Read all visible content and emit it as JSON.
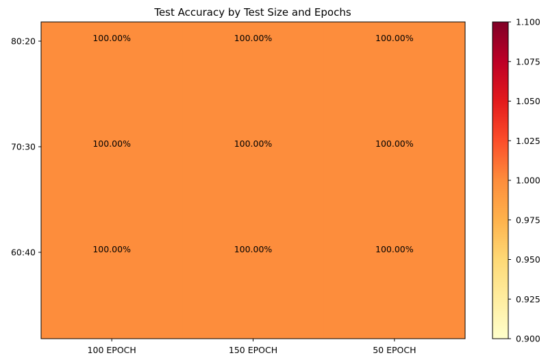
{
  "chart_data": {
    "type": "heatmap",
    "title": "Test Accuracy by Test Size and Epochs",
    "xlabel": "",
    "ylabel": "",
    "x_categories": [
      "100 EPOCH",
      "150 EPOCH",
      "50 EPOCH"
    ],
    "y_categories": [
      "80:20",
      "70:30",
      "60:40"
    ],
    "values": [
      [
        1.0,
        1.0,
        1.0
      ],
      [
        1.0,
        1.0,
        1.0
      ],
      [
        1.0,
        1.0,
        1.0
      ]
    ],
    "cell_labels": [
      [
        "100.00%",
        "100.00%",
        "100.00%"
      ],
      [
        "100.00%",
        "100.00%",
        "100.00%"
      ],
      [
        "100.00%",
        "100.00%",
        "100.00%"
      ]
    ],
    "colormap": "YlOrRd",
    "colorbar": {
      "vmin": 0.9,
      "vmax": 1.1,
      "ticks": [
        0.9,
        0.925,
        0.95,
        0.975,
        1.0,
        1.025,
        1.05,
        1.075,
        1.1
      ],
      "tick_labels": [
        "0.900",
        "0.925",
        "0.950",
        "0.975",
        "1.000",
        "1.025",
        "1.050",
        "1.075",
        "1.100"
      ]
    },
    "cell_color": "#fd8d3c",
    "grid": false
  }
}
